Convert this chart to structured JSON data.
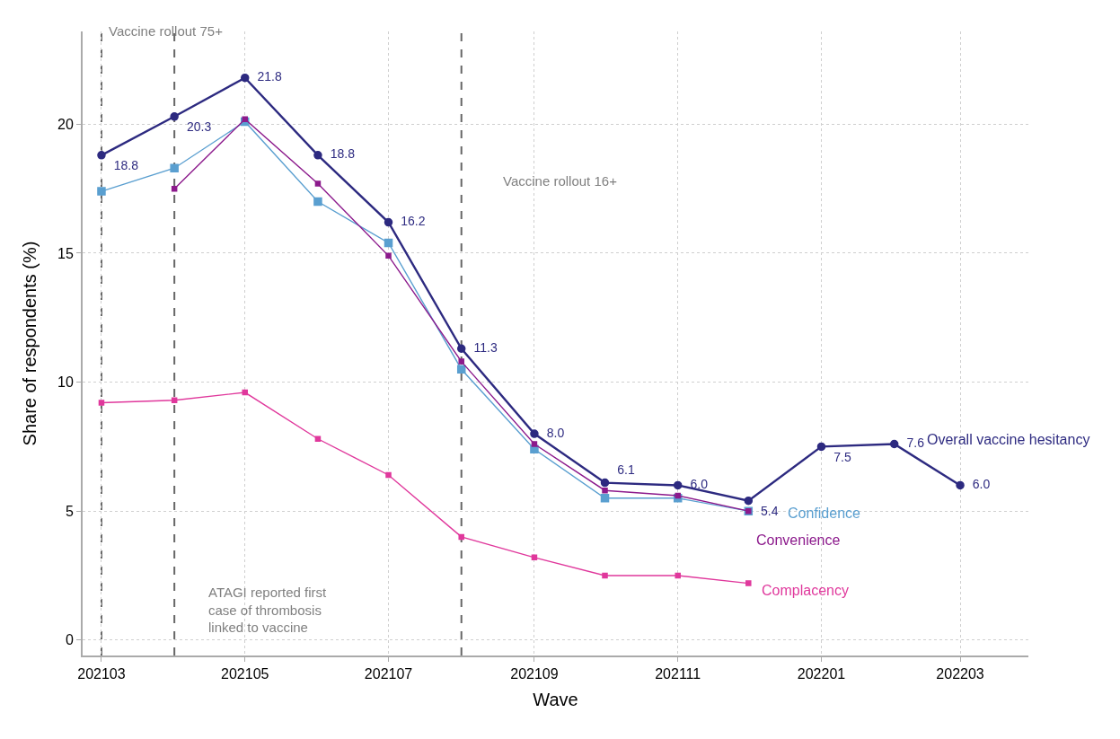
{
  "chart_data": {
    "type": "line",
    "xlabel": "Wave",
    "ylabel": "Share of respondents (%)",
    "x": [
      "2021-03",
      "2021-04",
      "2021-05",
      "2021-06",
      "2021-07",
      "2021-08",
      "2021-09",
      "2021-10",
      "2021-11",
      "2021-12",
      "2022-01",
      "2022-02",
      "2022-03"
    ],
    "xlim": [
      "2021-02-21",
      "2022-03-30"
    ],
    "xticks": [
      {
        "value": "2021-03",
        "label": "202103"
      },
      {
        "value": "2021-05",
        "label": "202105"
      },
      {
        "value": "2021-07",
        "label": "202107"
      },
      {
        "value": "2021-09",
        "label": "202109"
      },
      {
        "value": "2021-11",
        "label": "202111"
      },
      {
        "value": "2022-01",
        "label": "202201"
      },
      {
        "value": "2022-03",
        "label": "202203"
      }
    ],
    "ylim": [
      -0.6,
      23.6
    ],
    "yticks": [
      0,
      5,
      10,
      15,
      20
    ],
    "grid": true,
    "legend": false,
    "line_style": "solid",
    "series": [
      {
        "name": "Overall vaccine hesitancy",
        "color": "#2d2a80",
        "marker": "circle",
        "values": [
          18.8,
          20.3,
          21.8,
          18.8,
          16.2,
          11.3,
          8.0,
          6.1,
          6.0,
          5.4,
          7.5,
          7.6,
          6.0
        ],
        "value_labels": [
          "18.8",
          "20.3",
          "21.8",
          "18.8",
          "16.2",
          "11.3",
          "8.0",
          "6.1",
          "6.0",
          "5.4",
          "7.5",
          "7.6",
          "6.0"
        ]
      },
      {
        "name": "Confidence",
        "color": "#5a9fd0",
        "marker": "square",
        "values": [
          17.4,
          18.3,
          20.1,
          17.0,
          15.4,
          10.5,
          7.4,
          5.5,
          5.5,
          5.0,
          null,
          null,
          null
        ]
      },
      {
        "name": "Convenience",
        "color": "#8c1a8c",
        "marker": "square",
        "values": [
          null,
          17.5,
          20.2,
          17.7,
          14.9,
          10.8,
          7.6,
          5.8,
          5.6,
          5.0,
          null,
          null,
          null
        ]
      },
      {
        "name": "Complacency",
        "color": "#e0389c",
        "marker": "square",
        "values": [
          9.2,
          9.3,
          9.6,
          7.8,
          6.4,
          4.0,
          3.2,
          2.5,
          2.5,
          2.2,
          null,
          null,
          null
        ]
      }
    ],
    "ref_lines": [
      {
        "axis": "x",
        "value": "2021-03",
        "color": "#666666",
        "line_style": "dashed",
        "label": "Vaccine rollout 75+"
      },
      {
        "axis": "x",
        "value": "2021-04",
        "color": "#666666",
        "line_style": "dashed",
        "label": "ATAGI reported first\ncase of thrombosis\nlinked to vaccine"
      },
      {
        "axis": "x",
        "value": "2021-08",
        "color": "#666666",
        "line_style": "dashed",
        "label": "Vaccine rollout 16+"
      }
    ]
  }
}
